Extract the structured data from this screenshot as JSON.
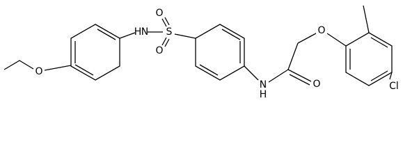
{
  "atoms": [
    {
      "label": "O"
    },
    {
      "label": "H"
    },
    {
      "label": "N"
    },
    {
      "label": "S"
    },
    {
      "label": "O"
    },
    {
      "label": "O"
    },
    {
      "label": "N"
    },
    {
      "label": "H"
    },
    {
      "label": "O"
    },
    {
      "label": "O"
    },
    {
      "label": "Cl"
    }
  ]
}
